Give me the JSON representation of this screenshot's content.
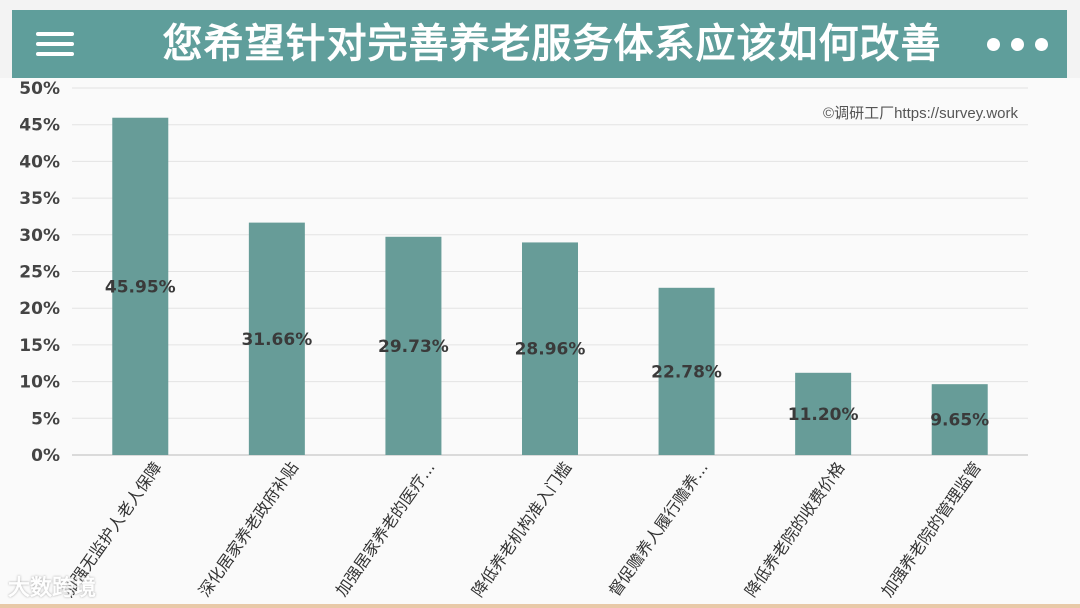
{
  "header": {
    "title": "您希望针对完善养老服务体系应该如何改善",
    "menu_icon": "hamburger-menu-icon",
    "more_icon": "more-dots-icon"
  },
  "watermark": "©调研工厂https://survey.work",
  "brand": "大数跨境",
  "colors": {
    "header_bg": "#5f9e9b",
    "bar": "#679c98",
    "label": "#3a3a3a"
  },
  "chart_data": {
    "type": "bar",
    "categories": [
      "加强无监护人老人保障",
      "深化居家养老政府补贴",
      "加强居家养老的医疗...",
      "降低养老机构准入门槛",
      "督促赡养人履行赡养...",
      "降低养老院的收费价格",
      "加强养老院的管理监管"
    ],
    "values": [
      45.95,
      31.66,
      29.73,
      28.96,
      22.78,
      11.2,
      9.65
    ],
    "value_labels": [
      "45.95%",
      "31.66%",
      "29.73%",
      "28.96%",
      "22.78%",
      "11.20%",
      "9.65%"
    ],
    "y_ticks": [
      "0%",
      "5%",
      "10%",
      "15%",
      "20%",
      "25%",
      "30%",
      "35%",
      "40%",
      "45%",
      "50%"
    ],
    "ylim": [
      0,
      50
    ],
    "grid": true,
    "legend": false
  }
}
